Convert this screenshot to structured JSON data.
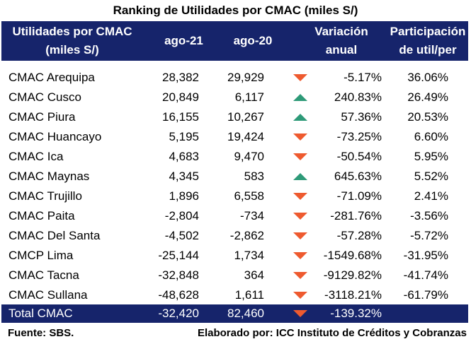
{
  "title": "Ranking de Utilidades por CMAC (miles S/)",
  "header": {
    "col1": [
      "Utilidades por CMAC",
      "(miles S/)"
    ],
    "col2": "ago-21",
    "col3": "ago-20",
    "col4": [
      "Variación",
      "anual"
    ],
    "col5": [
      "Participación",
      "de util/per"
    ]
  },
  "colors": {
    "header_bg": "#16246b",
    "up": "#2e9a78",
    "down": "#ee5a2f"
  },
  "rows": [
    {
      "name": "CMAC Arequipa",
      "ago21": "28,382",
      "ago20": "29,929",
      "trend": "down",
      "variation": "-5.17%",
      "share": "36.06%"
    },
    {
      "name": "CMAC Cusco",
      "ago21": "20,849",
      "ago20": "6,117",
      "trend": "up",
      "variation": "240.83%",
      "share": "26.49%"
    },
    {
      "name": "CMAC Piura",
      "ago21": "16,155",
      "ago20": "10,267",
      "trend": "up",
      "variation": "57.36%",
      "share": "20.53%"
    },
    {
      "name": "CMAC Huancayo",
      "ago21": "5,195",
      "ago20": "19,424",
      "trend": "down",
      "variation": "-73.25%",
      "share": "6.60%"
    },
    {
      "name": "CMAC Ica",
      "ago21": "4,683",
      "ago20": "9,470",
      "trend": "down",
      "variation": "-50.54%",
      "share": "5.95%"
    },
    {
      "name": "CMAC Maynas",
      "ago21": "4,345",
      "ago20": "583",
      "trend": "up",
      "variation": "645.63%",
      "share": "5.52%"
    },
    {
      "name": "CMAC Trujillo",
      "ago21": "1,896",
      "ago20": "6,558",
      "trend": "down",
      "variation": "-71.09%",
      "share": "2.41%"
    },
    {
      "name": "CMAC Paita",
      "ago21": "-2,804",
      "ago20": "-734",
      "trend": "down",
      "variation": "-281.76%",
      "share": "-3.56%"
    },
    {
      "name": "CMAC Del Santa",
      "ago21": "-4,502",
      "ago20": "-2,862",
      "trend": "down",
      "variation": "-57.28%",
      "share": "-5.72%"
    },
    {
      "name": "CMCP Lima",
      "ago21": "-25,144",
      "ago20": "1,734",
      "trend": "down",
      "variation": "-1549.68%",
      "share": "-31.95%"
    },
    {
      "name": "CMAC Tacna",
      "ago21": "-32,848",
      "ago20": "364",
      "trend": "down",
      "variation": "-9129.82%",
      "share": "-41.74%"
    },
    {
      "name": "CMAC Sullana",
      "ago21": "-48,628",
      "ago20": "1,611",
      "trend": "down",
      "variation": "-3118.21%",
      "share": "-61.79%"
    }
  ],
  "total": {
    "name": "Total CMAC",
    "ago21": "-32,420",
    "ago20": "82,460",
    "trend": "down",
    "variation": "-139.32%"
  },
  "footer": {
    "source": "Fuente: SBS.",
    "author": "Elaborado por: ICC Instituto de Créditos y Cobranzas"
  }
}
